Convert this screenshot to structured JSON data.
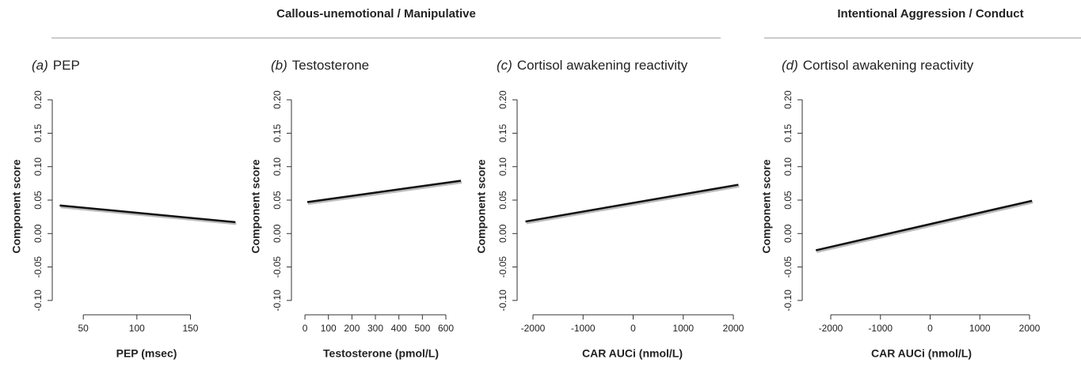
{
  "groups": [
    {
      "title": "Callous-unemotional / Manipulative"
    },
    {
      "title": "Intentional Aggression / Conduct"
    }
  ],
  "chart_data": [
    {
      "type": "line",
      "label": "(a)",
      "title": "PEP",
      "xlabel": "PEP (msec)",
      "ylabel": "Component score",
      "x": [
        28,
        192
      ],
      "values": [
        0.042,
        0.017
      ],
      "color": "#111111",
      "xlim": [
        24,
        194
      ],
      "xticks": [
        50,
        100,
        150
      ],
      "ylim": [
        -0.112,
        0.212
      ],
      "yticks": [
        {
          "value": -0.1,
          "label": "-0.10"
        },
        -0.05,
        {
          "value": 0,
          "label": "0.00"
        },
        0.05,
        {
          "value": 0.1,
          "label": "0.10"
        },
        0.15,
        {
          "value": 0.2,
          "label": "0.20"
        }
      ]
    },
    {
      "type": "line",
      "label": "(b)",
      "title": "Testosterone",
      "xlabel": "Testosterone (pmol/L)",
      "ylabel": "Component score",
      "x": [
        10,
        664
      ],
      "values": [
        0.047,
        0.079
      ],
      "color": "#111111",
      "xlim": [
        -44,
        691
      ],
      "xticks": [
        0,
        100,
        200,
        300,
        400,
        500,
        600
      ],
      "ylim": [
        -0.112,
        0.212
      ],
      "yticks": [
        {
          "value": -0.1,
          "label": "-0.10"
        },
        -0.05,
        {
          "value": 0,
          "label": "0.00"
        },
        0.05,
        {
          "value": 0.1,
          "label": "0.10"
        },
        0.15,
        {
          "value": 0.2,
          "label": "0.20"
        }
      ]
    },
    {
      "type": "line",
      "label": "(c)",
      "title": "Cortisol awakening reactivity",
      "xlabel": "CAR AUCi (nmol/L)",
      "ylabel": "Component score",
      "x": [
        -2150,
        2100
      ],
      "values": [
        0.018,
        0.073
      ],
      "color": "#111111",
      "xlim": [
        -2253,
        2221
      ],
      "xticks": [
        -2000,
        -1000,
        0,
        1000,
        2000
      ],
      "ylim": [
        -0.112,
        0.212
      ],
      "yticks": [
        {
          "value": -0.1,
          "label": "-0.10"
        },
        -0.05,
        {
          "value": 0,
          "label": "0.00"
        },
        0.05,
        {
          "value": 0.1,
          "label": "0.10"
        },
        0.15,
        {
          "value": 0.2,
          "label": "0.20"
        }
      ]
    },
    {
      "type": "line",
      "label": "(d)",
      "title": "Cortisol awakening reactivity",
      "xlabel": "CAR AUCi (nmol/L)",
      "ylabel": "Component score",
      "x": [
        -2300,
        2050
      ],
      "values": [
        -0.025,
        0.049
      ],
      "color": "#111111",
      "xlim": [
        -2510,
        2159
      ],
      "xticks": [
        -2000,
        -1000,
        0,
        1000,
        2000
      ],
      "ylim": [
        -0.112,
        0.212
      ],
      "yticks": [
        {
          "value": -0.1,
          "label": "-0.10"
        },
        -0.05,
        {
          "value": 0,
          "label": "0.00"
        },
        0.05,
        {
          "value": 0.1,
          "label": "0.10"
        },
        0.15,
        {
          "value": 0.2,
          "label": "0.20"
        }
      ]
    }
  ]
}
